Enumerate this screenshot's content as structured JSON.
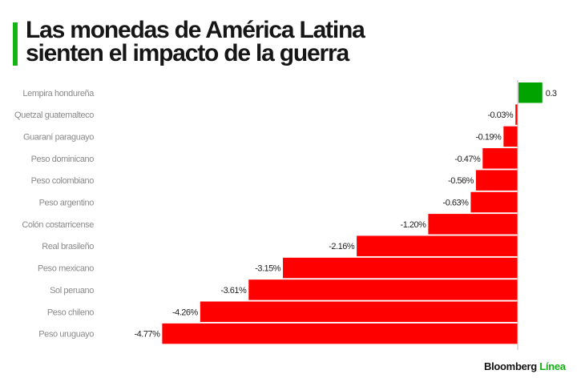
{
  "chart_data": {
    "type": "bar",
    "orientation": "horizontal",
    "title": "Las monedas de América Latina sienten el impacto de la guerra",
    "title_lines": [
      "Las monedas de América Latina",
      "sienten el impacto de la guerra"
    ],
    "xlabel": "",
    "ylabel": "",
    "unit": "%",
    "grid": false,
    "legend": null,
    "categories": [
      "Lempira hondureña",
      "Quetzal guatemalteco",
      "Guaraní paraguayo",
      "Peso dominicano",
      "Peso colombiano",
      "Peso argentino",
      "Colón costarricense",
      "Real brasileño",
      "Peso mexicano",
      "Sol peruano",
      "Peso chileno",
      "Peso uruguayo"
    ],
    "values": [
      0.32,
      -0.03,
      -0.19,
      -0.47,
      -0.56,
      -0.63,
      -1.2,
      -2.16,
      -3.15,
      -3.61,
      -4.26,
      -4.77
    ],
    "value_labels": [
      "0.3",
      "-0.03%",
      "-0.19%",
      "-0.47%",
      "-0.56%",
      "-0.63%",
      "-1.20%",
      "-2.16%",
      "-3.15%",
      "-3.61%",
      "-4.26%",
      "-4.77%"
    ],
    "xlim": [
      -4.77,
      0.5
    ],
    "colors": {
      "positive": "#00a300",
      "negative": "#ff0000",
      "axis": "#bbbbbb"
    }
  },
  "header": {
    "accent_color": "#14b514"
  },
  "footer": {
    "brand_part1": "Bloomberg",
    "brand_part2": "Línea"
  }
}
